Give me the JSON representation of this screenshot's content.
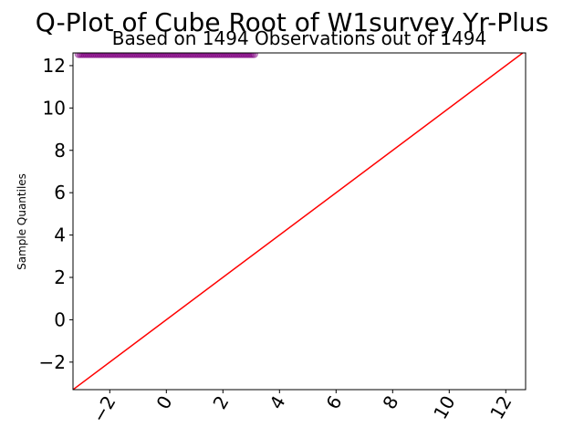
{
  "chart_data": {
    "type": "scatter",
    "title": "Q-Plot of Cube Root of W1survey Yr-Plus",
    "subtitle": "Based on 1494 Observations out of 1494",
    "xlabel": "",
    "ylabel": "Sample Quantiles",
    "xlim": [
      -3.3,
      12.7
    ],
    "ylim": [
      -3.3,
      12.6
    ],
    "x_ticks": [
      -2,
      0,
      2,
      4,
      6,
      8,
      10,
      12
    ],
    "y_ticks": [
      -2,
      0,
      2,
      4,
      6,
      8,
      10,
      12
    ],
    "x_tick_rotation": 60,
    "grid": false,
    "series": [
      {
        "kind": "points",
        "color": "#800080",
        "x_range": [
          -3.1,
          3.1
        ],
        "y_value": 12.55
      },
      {
        "kind": "reference-line",
        "color": "#ff0000",
        "slope": 1,
        "intercept": 0
      }
    ]
  }
}
